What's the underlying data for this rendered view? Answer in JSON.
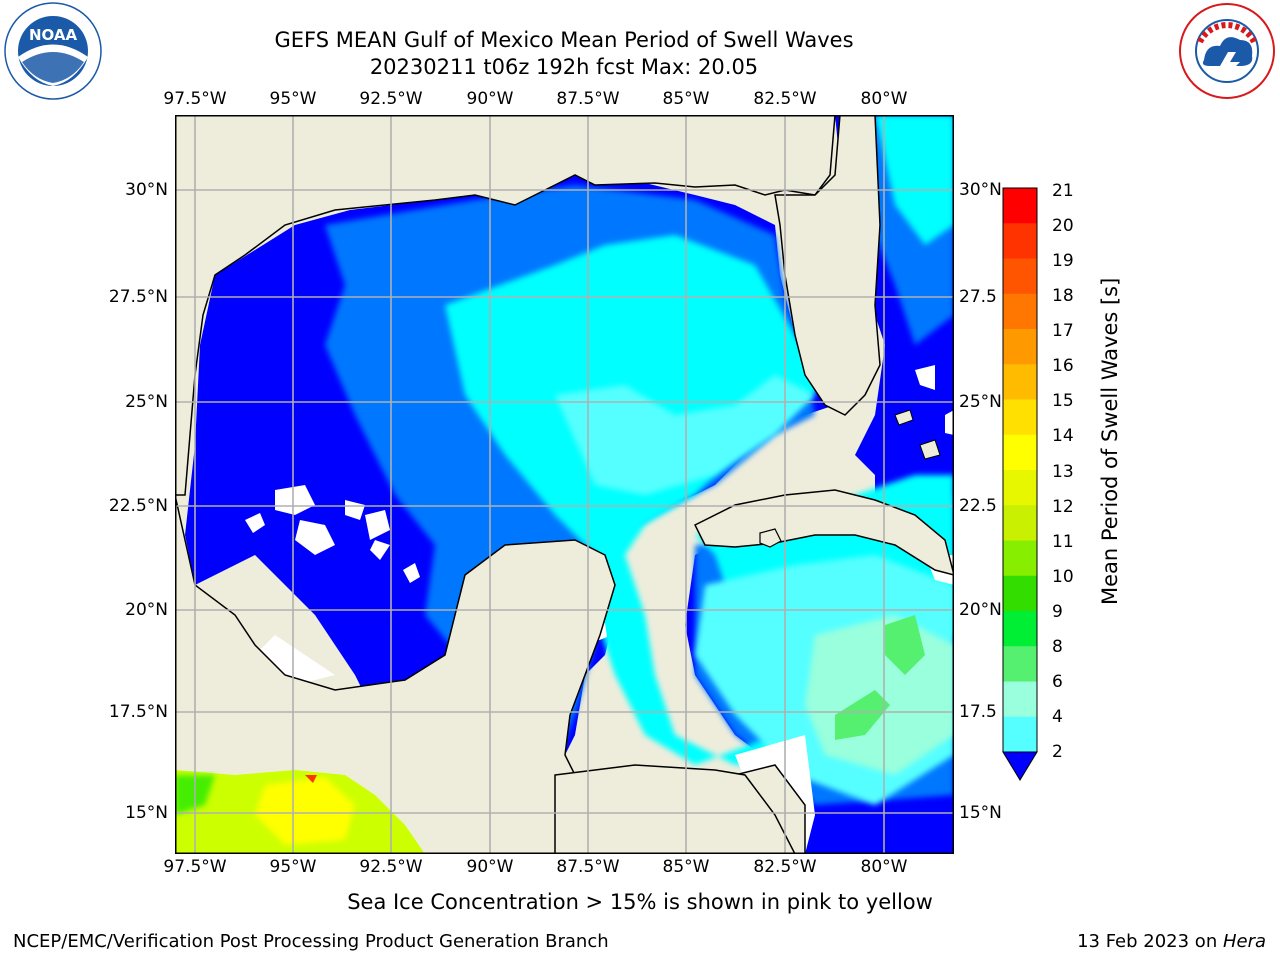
{
  "header": {
    "title_line1": "GEFS MEAN Gulf of Mexico Mean Period of Swell Waves",
    "title_line2": "20230211 t06z 192h fcst   Max: 20.05"
  },
  "logos": {
    "left": {
      "text": "NOAA",
      "ring_text": "NATIONAL OCEANIC AND ATMOSPHERIC ADMINISTRATION · U.S. DEPARTMENT OF COMMERCE",
      "color": "#1b5aa8"
    },
    "right": {
      "ring_text": "NATIONAL WEATHER SERVICE",
      "color": "#d7191c"
    }
  },
  "map": {
    "lon_ticks_top": [
      "97.5°W",
      "95°W",
      "92.5°W",
      "90°W",
      "87.5°W",
      "85°W",
      "82.5°W",
      "80°W"
    ],
    "lon_ticks_bottom": [
      "97.5°W",
      "95°W",
      "92.5°W",
      "90°W",
      "87.5°W",
      "85°W",
      "82.5°W",
      "80°W"
    ],
    "lat_ticks_left": [
      "30°N",
      "27.5°N",
      "25°N",
      "22.5°N",
      "20°N",
      "17.5°N",
      "15°N"
    ],
    "lat_ticks_right": [
      "30°N",
      "27.5",
      "25°N",
      "22.5",
      "20°N",
      "17.5",
      "15°N"
    ],
    "land_color": "#eeeddc",
    "grid_color": "#b0b0b0"
  },
  "colorbar": {
    "label": "Mean Period of Swell Waves [s]",
    "ticks": [
      "21",
      "20",
      "19",
      "18",
      "17",
      "16",
      "15",
      "14",
      "13",
      "12",
      "11",
      "10",
      "9",
      "8",
      "6",
      "4",
      "2"
    ],
    "colors": [
      "#ff0000",
      "#ff3300",
      "#ff5500",
      "#ff7700",
      "#ff9900",
      "#ffbb00",
      "#ffe000",
      "#ffff00",
      "#e6f700",
      "#c8f000",
      "#88ee00",
      "#33dd00",
      "#00ee33",
      "#55f070",
      "#99ffdd",
      "#55ffff",
      "#00ffff",
      "#0077ff"
    ],
    "extend_color": "#0000ff"
  },
  "note": "Sea Ice Concentration > 15% is shown in pink to yellow",
  "footer": {
    "left": "NCEP/EMC/Verification Post Processing Product Generation Branch",
    "right_prefix": "13 Feb 2023 on ",
    "right_machine": "Hera"
  }
}
